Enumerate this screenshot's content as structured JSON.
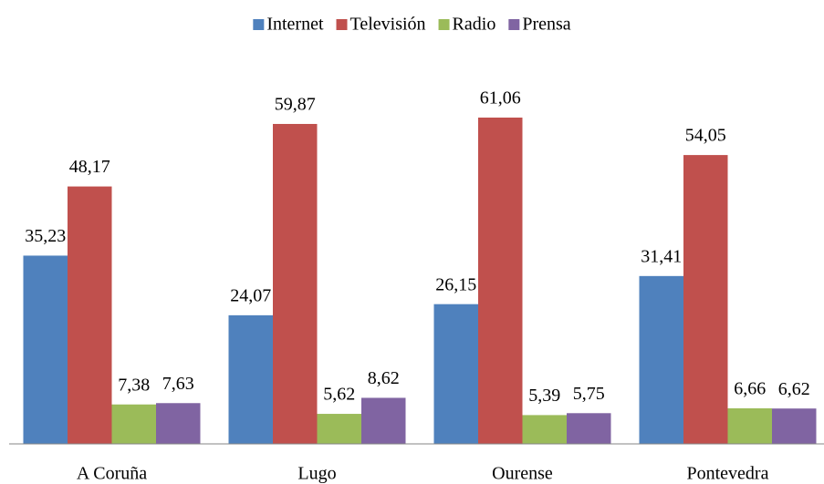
{
  "chart_data": {
    "type": "bar",
    "categories": [
      "A Coruña",
      "Lugo",
      "Ourense",
      "Pontevedra"
    ],
    "series": [
      {
        "name": "Internet",
        "color": "#4f81bd",
        "values": [
          35.23,
          24.07,
          26.15,
          31.41
        ],
        "value_labels": [
          "35,23",
          "24,07",
          "26,15",
          "31,41"
        ]
      },
      {
        "name": "Televisión",
        "color": "#c0504d",
        "values": [
          48.17,
          59.87,
          61.06,
          54.05
        ],
        "value_labels": [
          "48,17",
          "59,87",
          "61,06",
          "54,05"
        ]
      },
      {
        "name": "Radio",
        "color": "#9bbb59",
        "values": [
          7.38,
          5.62,
          5.39,
          6.66
        ],
        "value_labels": [
          "7,38",
          "5,62",
          "5,39",
          "6,66"
        ]
      },
      {
        "name": "Prensa",
        "color": "#8064a2",
        "values": [
          7.63,
          8.62,
          5.75,
          6.62
        ],
        "value_labels": [
          "7,63",
          "8,62",
          "5,75",
          "6,62"
        ]
      }
    ],
    "legend": "top"
  }
}
